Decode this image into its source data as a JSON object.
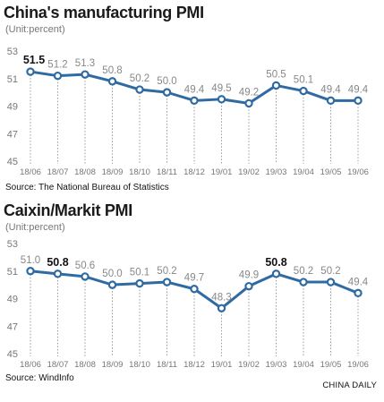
{
  "credit": "CHINA DAILY",
  "colors": {
    "line": "#2f6aa3",
    "marker_fill": "#ffffff",
    "drop": "#9a9a9a",
    "axis_text": "#777777",
    "value_text": "#888888",
    "highlight_text": "#111111"
  },
  "chart_data": [
    {
      "type": "line",
      "title": "China's manufacturing PMI",
      "subtitle": "(Unit:percent)",
      "source": "Source: The National Bureau of Statistics",
      "categories": [
        "18/06",
        "18/07",
        "18/08",
        "18/09",
        "18/10",
        "18/11",
        "18/12",
        "19/01",
        "19/02",
        "19/03",
        "19/04",
        "19/05",
        "19/06"
      ],
      "series": [
        {
          "values": [
            51.5,
            51.2,
            51.3,
            50.8,
            50.2,
            50.0,
            49.4,
            49.5,
            49.2,
            50.5,
            50.1,
            49.4,
            49.4
          ],
          "value_labels": [
            "51.5",
            "51.2",
            "51.3",
            "50.8",
            "50.2",
            "50.0",
            "49.4",
            "49.5",
            "49.2",
            "50.5",
            "50.1",
            "49.4",
            "49.4"
          ],
          "highlight": [
            0
          ]
        }
      ],
      "yticks": [
        "53",
        "51",
        "49",
        "47",
        "45"
      ],
      "ylim": [
        45,
        53
      ],
      "grid": false
    },
    {
      "type": "line",
      "title": "Caixin/Markit PMI",
      "subtitle": "(Unit:percent)",
      "source": "Source: WindInfo",
      "categories": [
        "18/06",
        "18/07",
        "18/08",
        "18/09",
        "18/10",
        "18/11",
        "18/12",
        "19/01",
        "19/02",
        "19/03",
        "19/04",
        "19/05",
        "19/06"
      ],
      "series": [
        {
          "values": [
            51.0,
            50.8,
            50.6,
            50.0,
            50.1,
            50.2,
            49.7,
            48.3,
            49.9,
            50.8,
            50.2,
            50.2,
            49.4
          ],
          "value_labels": [
            "51.0",
            "50.8",
            "50.6",
            "50.0",
            "50.1",
            "50.2",
            "49.7",
            "48.3",
            "49.9",
            "50.8",
            "50.2",
            "50.2",
            "49.4"
          ],
          "highlight": [
            1,
            9
          ]
        }
      ],
      "yticks": [
        "53",
        "51",
        "49",
        "47",
        "45"
      ],
      "ylim": [
        45,
        53
      ],
      "grid": false
    }
  ]
}
